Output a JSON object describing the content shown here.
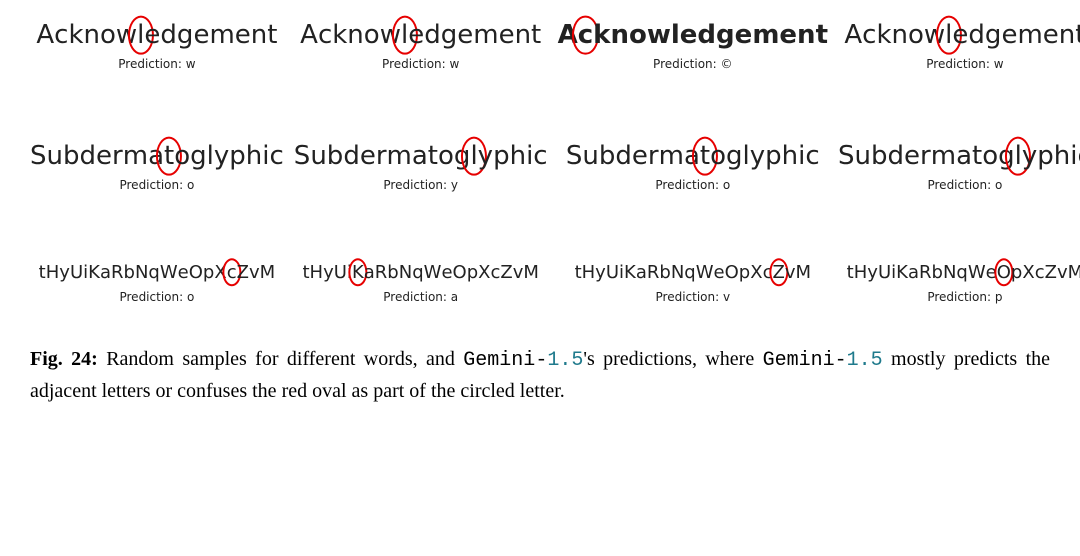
{
  "font": {
    "word_sans": "DejaVu Sans, Helvetica Neue, Arial, sans-serif",
    "caption_serif": "CMU Serif, Georgia, Times New Roman, serif",
    "mono": "Courier New, monospace"
  },
  "colors": {
    "text": "#222222",
    "circle": "#e60000",
    "background": "#ffffff",
    "model_version": "#1f7a8c"
  },
  "rows": [
    {
      "word": "Acknowledgement",
      "style": "reg",
      "cells": [
        {
          "circled_index": 6,
          "prediction": "w"
        },
        {
          "circled_index": 6,
          "prediction": "w"
        },
        {
          "circled_index": 1,
          "prediction": "©",
          "bold": true
        },
        {
          "circled_index": 6,
          "prediction": "w"
        }
      ]
    },
    {
      "word": "Subdermatoglyphic",
      "style": "reg",
      "cells": [
        {
          "circled_index": 8,
          "prediction": "o"
        },
        {
          "circled_index": 11,
          "prediction": "y"
        },
        {
          "circled_index": 8,
          "prediction": "o"
        },
        {
          "circled_index": 11,
          "prediction": "o"
        }
      ]
    },
    {
      "word": "tHyUiKaRbNqWeOpXcZvM",
      "style": "small",
      "cells": [
        {
          "circled_index": 16,
          "prediction": "o"
        },
        {
          "circled_index": 5,
          "prediction": "a"
        },
        {
          "circled_index": 17,
          "prediction": "v"
        },
        {
          "circled_index": 13,
          "prediction": "p"
        }
      ]
    }
  ],
  "pred_prefix": "Prediction: ",
  "caption": {
    "label": "Fig. 24:",
    "text_1": " Random samples for different words, and ",
    "model_name": "Gemini",
    "model_sep": "-",
    "model_ver": "1.5",
    "text_2": "'s predictions, where ",
    "text_3": " mostly predicts the adjacent letters or confuses the red oval as part of the circled letter."
  }
}
